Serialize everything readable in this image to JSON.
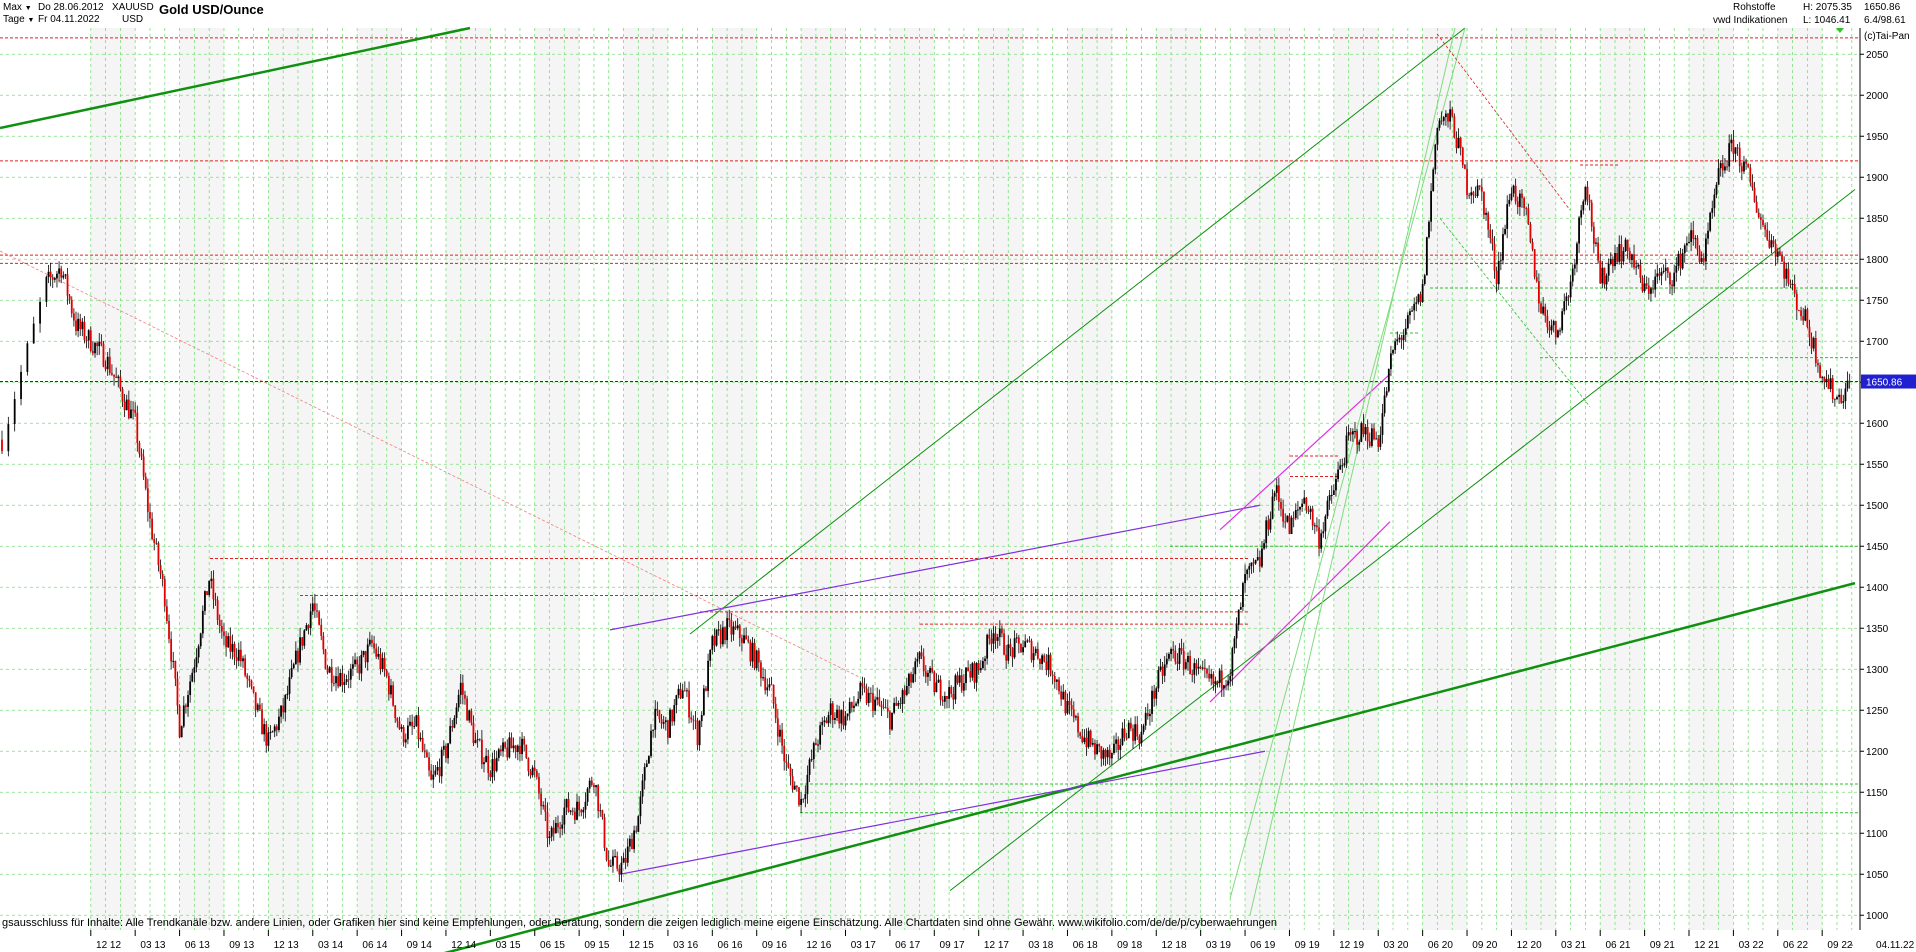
{
  "header": {
    "range_selector": "Max",
    "period_selector": "Tage",
    "date_start": "Do 28.06.2012",
    "date_end": "Fr 04.11.2022",
    "symbol": "XAUUSD",
    "currency": "USD",
    "title": "Gold USD/Ounce",
    "category": "Rohstoffe",
    "source": "vwd Indikationen",
    "high": "H: 2075.35",
    "low": "L: 1046.41",
    "last": "1650.86",
    "change": "6.4/98.61",
    "copyright": "(c)Tai-Pan"
  },
  "footer": {
    "disclaimer": "gsausschluss für Inhalte: Alle Trendkanäle bzw. andere Linien, oder Grafiken hier sind keine Empfehlungen, oder Beratung, sondern die zeigen lediglich meine eigene Einschätzung. Alle Chartdaten sind ohne Gewähr.  www.wikifolio.com/de/de/p/cyberwaehrungen",
    "end_date_label": "04.11.22",
    "dash": "-"
  },
  "chart_data": {
    "type": "candlestick",
    "title": "Gold USD/Ounce",
    "y_axis_side": "right",
    "ylim": [
      982,
      2082
    ],
    "y_ticks": [
      1000,
      1050,
      1100,
      1150,
      1200,
      1250,
      1300,
      1350,
      1400,
      1450,
      1500,
      1550,
      1600,
      1650,
      1700,
      1750,
      1800,
      1850,
      1900,
      1950,
      2000,
      2050
    ],
    "x_ticks": [
      "12 12",
      "03 13",
      "06 13",
      "09 13",
      "12 13",
      "03 14",
      "06 14",
      "09 14",
      "12 14",
      "03 15",
      "06 15",
      "09 15",
      "12 15",
      "03 16",
      "06 16",
      "09 16",
      "12 16",
      "03 17",
      "06 17",
      "09 17",
      "12 17",
      "03 18",
      "06 18",
      "09 18",
      "12 18",
      "03 19",
      "06 19",
      "09 19",
      "12 19",
      "03 20",
      "06 20",
      "09 20",
      "12 20",
      "03 21",
      "06 21",
      "09 21",
      "12 21",
      "03 22",
      "06 22",
      "09 22"
    ],
    "x_range": [
      "06 12",
      "11 22"
    ],
    "current_price": 1650.86,
    "current_price_label": "1650.86",
    "grid": true,
    "series": [
      {
        "name": "",
        "points": [
          [
            "06 12",
            1580
          ],
          [
            "09 12",
            1770
          ],
          [
            "10 12",
            1790
          ],
          [
            "11 12",
            1720
          ],
          [
            "12 12",
            1700
          ],
          [
            "01 13",
            1680
          ],
          [
            "02 13",
            1640
          ],
          [
            "03 13",
            1600
          ],
          [
            "04 13",
            1480
          ],
          [
            "05 13",
            1390
          ],
          [
            "06 13",
            1230
          ],
          [
            "07 13",
            1310
          ],
          [
            "08 13",
            1410
          ],
          [
            "09 13",
            1330
          ],
          [
            "10 13",
            1320
          ],
          [
            "11 13",
            1260
          ],
          [
            "12 13",
            1210
          ],
          [
            "01 14",
            1250
          ],
          [
            "02 14",
            1320
          ],
          [
            "03 14",
            1380
          ],
          [
            "04 14",
            1300
          ],
          [
            "05 14",
            1290
          ],
          [
            "06 14",
            1300
          ],
          [
            "07 14",
            1330
          ],
          [
            "08 14",
            1290
          ],
          [
            "09 14",
            1220
          ],
          [
            "10 14",
            1230
          ],
          [
            "11 14",
            1160
          ],
          [
            "12 14",
            1200
          ],
          [
            "01 15",
            1280
          ],
          [
            "02 15",
            1210
          ],
          [
            "03 15",
            1180
          ],
          [
            "04 15",
            1200
          ],
          [
            "05 15",
            1210
          ],
          [
            "06 15",
            1170
          ],
          [
            "07 15",
            1090
          ],
          [
            "08 15",
            1130
          ],
          [
            "09 15",
            1130
          ],
          [
            "10 15",
            1170
          ],
          [
            "11 15",
            1060
          ],
          [
            "12 15",
            1060
          ],
          [
            "01 16",
            1120
          ],
          [
            "02 16",
            1240
          ],
          [
            "03 16",
            1230
          ],
          [
            "04 16",
            1280
          ],
          [
            "05 16",
            1220
          ],
          [
            "06 16",
            1330
          ],
          [
            "07 16",
            1350
          ],
          [
            "08 16",
            1340
          ],
          [
            "09 16",
            1310
          ],
          [
            "10 16",
            1270
          ],
          [
            "11 16",
            1180
          ],
          [
            "12 16",
            1140
          ],
          [
            "01 17",
            1210
          ],
          [
            "02 17",
            1250
          ],
          [
            "03 17",
            1240
          ],
          [
            "04 17",
            1270
          ],
          [
            "05 17",
            1260
          ],
          [
            "06 17",
            1240
          ],
          [
            "07 17",
            1270
          ],
          [
            "08 17",
            1310
          ],
          [
            "09 17",
            1280
          ],
          [
            "10 17",
            1270
          ],
          [
            "11 17",
            1290
          ],
          [
            "12 17",
            1300
          ],
          [
            "01 18",
            1350
          ],
          [
            "02 18",
            1320
          ],
          [
            "03 18",
            1330
          ],
          [
            "04 18",
            1320
          ],
          [
            "05 18",
            1300
          ],
          [
            "06 18",
            1250
          ],
          [
            "07 18",
            1220
          ],
          [
            "08 18",
            1200
          ],
          [
            "09 18",
            1190
          ],
          [
            "10 18",
            1230
          ],
          [
            "11 18",
            1220
          ],
          [
            "12 18",
            1280
          ],
          [
            "01 19",
            1320
          ],
          [
            "02 19",
            1310
          ],
          [
            "03 19",
            1290
          ],
          [
            "04 19",
            1280
          ],
          [
            "05 19",
            1300
          ],
          [
            "06 19",
            1410
          ],
          [
            "07 19",
            1430
          ],
          [
            "08 19",
            1520
          ],
          [
            "09 19",
            1470
          ],
          [
            "10 19",
            1510
          ],
          [
            "11 19",
            1460
          ],
          [
            "12 19",
            1520
          ],
          [
            "01 20",
            1580
          ],
          [
            "02 20",
            1590
          ],
          [
            "03 20",
            1580
          ],
          [
            "04 20",
            1690
          ],
          [
            "05 20",
            1720
          ],
          [
            "06 20",
            1760
          ],
          [
            "07 20",
            1970
          ],
          [
            "08 20",
            1970
          ],
          [
            "09 20",
            1890
          ],
          [
            "10 20",
            1880
          ],
          [
            "11 20",
            1780
          ],
          [
            "12 20",
            1890
          ],
          [
            "01 21",
            1850
          ],
          [
            "02 21",
            1740
          ],
          [
            "03 21",
            1710
          ],
          [
            "04 21",
            1770
          ],
          [
            "05 21",
            1900
          ],
          [
            "06 21",
            1770
          ],
          [
            "07 21",
            1810
          ],
          [
            "08 21",
            1810
          ],
          [
            "09 21",
            1760
          ],
          [
            "10 21",
            1780
          ],
          [
            "11 21",
            1780
          ],
          [
            "12 21",
            1830
          ],
          [
            "01 22",
            1800
          ],
          [
            "02 22",
            1900
          ],
          [
            "03 22",
            1940
          ],
          [
            "04 22",
            1900
          ],
          [
            "05 22",
            1840
          ],
          [
            "06 22",
            1810
          ],
          [
            "07 22",
            1760
          ],
          [
            "08 22",
            1720
          ],
          [
            "09 22",
            1660
          ],
          [
            "10 22",
            1630
          ],
          [
            "11 22",
            1650
          ]
        ]
      }
    ]
  }
}
